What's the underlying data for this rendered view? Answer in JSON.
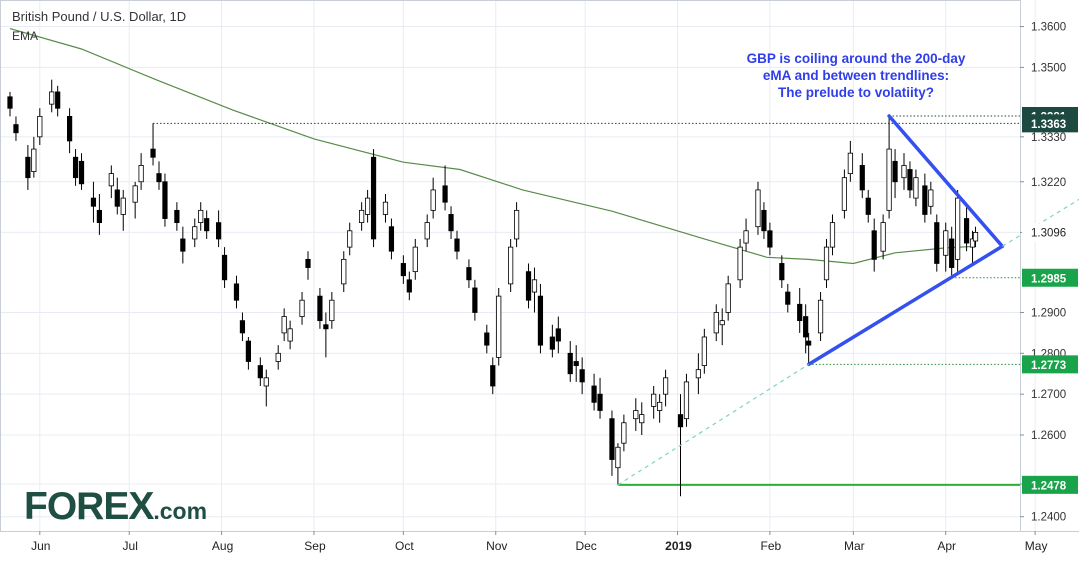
{
  "chart": {
    "title": "British Pound / U.S. Dollar, 1D",
    "indicator": "EMA",
    "annotation_lines": [
      "GBP is coiling around the 200-day",
      "eMA and between trendlines:",
      "The prelude to volatiity?"
    ]
  },
  "logo": {
    "text": "FOREX",
    "suffix": ".com"
  },
  "colors": {
    "up_candle": "#ffffff",
    "down_candle": "#000000",
    "ema": "#5a8a4a",
    "trendline": "#3450ee",
    "support_green": "#2bb03b",
    "dotted_level": "#2e8b3d",
    "dashed_extension": "#7fd4c0",
    "tag_dark": "#1d4a40",
    "tag_green": "#19a34a",
    "annotation": "#2f3ee8"
  },
  "chart_data": {
    "type": "candlestick",
    "title": "British Pound / U.S. Dollar, 1D",
    "xlabel": "",
    "ylabel": "",
    "ylim": [
      1.2365,
      1.3665
    ],
    "y_ticks": [
      "1.3600",
      "1.3500",
      "1.3330",
      "1.3220",
      "1.3096",
      "1.2900",
      "1.2800",
      "1.2700",
      "1.2600",
      "1.2480",
      "1.2400"
    ],
    "x_ticks": [
      "Jun",
      "Jul",
      "Aug",
      "Sep",
      "Oct",
      "Nov",
      "Dec",
      "2019",
      "Feb",
      "Mar",
      "Apr",
      "May"
    ],
    "price_tags": [
      {
        "label": "1.3381",
        "value": 1.3381,
        "style": "dark"
      },
      {
        "label": "1.3363",
        "value": 1.3363,
        "style": "dark"
      },
      {
        "label": "1.3096",
        "value": 1.3096,
        "style": "plain"
      },
      {
        "label": "1.2985",
        "value": 1.2985,
        "style": "green"
      },
      {
        "label": "1.2773",
        "value": 1.2773,
        "style": "green"
      },
      {
        "label": "1.2478",
        "value": 1.2478,
        "style": "green"
      }
    ],
    "horizontal_levels": [
      {
        "value": 1.3363,
        "from": "2018-07-09",
        "style": "dotted"
      },
      {
        "value": 1.3381,
        "from": "2019-03-13",
        "style": "dotted"
      },
      {
        "value": 1.2985,
        "from": "2019-04-03",
        "style": "dotted"
      },
      {
        "value": 1.2773,
        "from": "2019-02-14",
        "style": "dotted"
      },
      {
        "value": 1.2478,
        "from": "2018-12-12",
        "style": "solid"
      }
    ],
    "trendlines": [
      {
        "from": [
          "2019-03-13",
          1.3381
        ],
        "to": [
          "2019-04-20",
          1.3062
        ],
        "style": "solid"
      },
      {
        "from": [
          "2019-02-14",
          1.2773
        ],
        "to": [
          "2019-04-20",
          1.3062
        ],
        "style": "solid"
      },
      {
        "from": [
          "2018-12-12",
          1.2478
        ],
        "to": [
          "2019-02-14",
          1.2773
        ],
        "style": "dashed"
      },
      {
        "from": [
          "2019-04-20",
          1.3062
        ],
        "to": [
          "2019-05-25",
          1.3218
        ],
        "style": "dashed"
      }
    ],
    "ema": {
      "name": "EMA",
      "period": 200,
      "points": [
        [
          "2018-05-22",
          1.3595
        ],
        [
          "2018-06-15",
          1.3545
        ],
        [
          "2018-07-10",
          1.347
        ],
        [
          "2018-08-05",
          1.3395
        ],
        [
          "2018-09-01",
          1.3325
        ],
        [
          "2018-10-01",
          1.3268
        ],
        [
          "2018-10-20",
          1.325
        ],
        [
          "2018-11-10",
          1.32
        ],
        [
          "2018-12-10",
          1.3148
        ],
        [
          "2019-01-10",
          1.308
        ],
        [
          "2019-01-31",
          1.3035
        ],
        [
          "2019-02-14",
          1.303
        ],
        [
          "2019-03-01",
          1.302
        ],
        [
          "2019-03-15",
          1.3046
        ],
        [
          "2019-04-01",
          1.3058
        ],
        [
          "2019-04-11",
          1.3062
        ]
      ]
    },
    "candles": [
      [
        "2018-05-22",
        1.3428,
        1.344,
        1.338,
        1.34
      ],
      [
        "2018-05-24",
        1.336,
        1.338,
        1.332,
        1.334
      ],
      [
        "2018-05-28",
        1.328,
        1.331,
        1.32,
        1.323
      ],
      [
        "2018-05-30",
        1.3245,
        1.333,
        1.323,
        1.33
      ],
      [
        "2018-06-01",
        1.333,
        1.34,
        1.331,
        1.338
      ],
      [
        "2018-06-05",
        1.341,
        1.347,
        1.339,
        1.344
      ],
      [
        "2018-06-07",
        1.344,
        1.3455,
        1.338,
        1.34
      ],
      [
        "2018-06-11",
        1.338,
        1.34,
        1.329,
        1.332
      ],
      [
        "2018-06-13",
        1.328,
        1.33,
        1.321,
        1.323
      ],
      [
        "2018-06-15",
        1.327,
        1.329,
        1.32,
        1.3215
      ],
      [
        "2018-06-19",
        1.318,
        1.322,
        1.312,
        1.316
      ],
      [
        "2018-06-21",
        1.315,
        1.319,
        1.309,
        1.312
      ],
      [
        "2018-06-25",
        1.321,
        1.326,
        1.318,
        1.324
      ],
      [
        "2018-06-27",
        1.32,
        1.323,
        1.314,
        1.316
      ],
      [
        "2018-06-29",
        1.314,
        1.32,
        1.31,
        1.318
      ],
      [
        "2018-07-03",
        1.317,
        1.322,
        1.313,
        1.321
      ],
      [
        "2018-07-05",
        1.322,
        1.329,
        1.32,
        1.326
      ],
      [
        "2018-07-09",
        1.33,
        1.3363,
        1.326,
        1.328
      ],
      [
        "2018-07-11",
        1.324,
        1.327,
        1.32,
        1.322
      ],
      [
        "2018-07-13",
        1.322,
        1.324,
        1.311,
        1.313
      ],
      [
        "2018-07-17",
        1.315,
        1.317,
        1.31,
        1.312
      ],
      [
        "2018-07-19",
        1.308,
        1.311,
        1.302,
        1.305
      ],
      [
        "2018-07-23",
        1.308,
        1.313,
        1.306,
        1.311
      ],
      [
        "2018-07-25",
        1.312,
        1.317,
        1.31,
        1.315
      ],
      [
        "2018-07-27",
        1.313,
        1.315,
        1.308,
        1.31
      ],
      [
        "2018-07-31",
        1.312,
        1.315,
        1.306,
        1.308
      ],
      [
        "2018-08-02",
        1.304,
        1.306,
        1.296,
        1.298
      ],
      [
        "2018-08-06",
        1.297,
        1.299,
        1.291,
        1.293
      ],
      [
        "2018-08-08",
        1.288,
        1.29,
        1.283,
        1.285
      ],
      [
        "2018-08-10",
        1.283,
        1.284,
        1.276,
        1.278
      ],
      [
        "2018-08-14",
        1.277,
        1.279,
        1.272,
        1.274
      ],
      [
        "2018-08-16",
        1.272,
        1.276,
        1.267,
        1.274
      ],
      [
        "2018-08-20",
        1.278,
        1.282,
        1.276,
        1.28
      ],
      [
        "2018-08-22",
        1.285,
        1.291,
        1.283,
        1.289
      ],
      [
        "2018-08-24",
        1.283,
        1.288,
        1.281,
        1.286
      ],
      [
        "2018-08-28",
        1.289,
        1.295,
        1.287,
        1.293
      ],
      [
        "2018-08-30",
        1.303,
        1.305,
        1.298,
        1.301
      ],
      [
        "2018-09-03",
        1.294,
        1.296,
        1.286,
        1.288
      ],
      [
        "2018-09-05",
        1.287,
        1.29,
        1.279,
        1.286
      ],
      [
        "2018-09-07",
        1.288,
        1.295,
        1.286,
        1.293
      ],
      [
        "2018-09-11",
        1.297,
        1.305,
        1.295,
        1.303
      ],
      [
        "2018-09-13",
        1.306,
        1.312,
        1.304,
        1.31
      ],
      [
        "2018-09-17",
        1.312,
        1.317,
        1.31,
        1.315
      ],
      [
        "2018-09-19",
        1.314,
        1.32,
        1.312,
        1.318
      ],
      [
        "2018-09-21",
        1.328,
        1.33,
        1.306,
        1.308
      ],
      [
        "2018-09-25",
        1.314,
        1.319,
        1.312,
        1.317
      ],
      [
        "2018-09-27",
        1.311,
        1.313,
        1.303,
        1.305
      ],
      [
        "2018-10-01",
        1.302,
        1.304,
        1.297,
        1.299
      ],
      [
        "2018-10-03",
        1.298,
        1.3,
        1.293,
        1.295
      ],
      [
        "2018-10-05",
        1.3,
        1.308,
        1.298,
        1.306
      ],
      [
        "2018-10-09",
        1.308,
        1.314,
        1.306,
        1.312
      ],
      [
        "2018-10-11",
        1.315,
        1.323,
        1.313,
        1.32
      ],
      [
        "2018-10-15",
        1.321,
        1.326,
        1.315,
        1.317
      ],
      [
        "2018-10-17",
        1.314,
        1.316,
        1.308,
        1.31
      ],
      [
        "2018-10-19",
        1.308,
        1.31,
        1.303,
        1.305
      ],
      [
        "2018-10-23",
        1.301,
        1.303,
        1.296,
        1.298
      ],
      [
        "2018-10-25",
        1.296,
        1.298,
        1.288,
        1.29
      ],
      [
        "2018-10-29",
        1.285,
        1.287,
        1.28,
        1.282
      ],
      [
        "2018-10-31",
        1.277,
        1.279,
        1.27,
        1.272
      ],
      [
        "2018-11-02",
        1.279,
        1.296,
        1.277,
        1.294
      ],
      [
        "2018-11-06",
        1.297,
        1.308,
        1.295,
        1.306
      ],
      [
        "2018-11-08",
        1.308,
        1.317,
        1.306,
        1.315
      ],
      [
        "2018-11-12",
        1.3,
        1.302,
        1.291,
        1.293
      ],
      [
        "2018-11-14",
        1.295,
        1.301,
        1.29,
        1.298
      ],
      [
        "2018-11-16",
        1.294,
        1.297,
        1.28,
        1.282
      ],
      [
        "2018-11-20",
        1.284,
        1.287,
        1.279,
        1.281
      ],
      [
        "2018-11-22",
        1.286,
        1.289,
        1.28,
        1.283
      ],
      [
        "2018-11-26",
        1.28,
        1.283,
        1.273,
        1.275
      ],
      [
        "2018-11-28",
        1.278,
        1.282,
        1.273,
        1.277
      ],
      [
        "2018-11-30",
        1.276,
        1.279,
        1.27,
        1.273
      ],
      [
        "2018-12-04",
        1.272,
        1.275,
        1.266,
        1.268
      ],
      [
        "2018-12-06",
        1.27,
        1.274,
        1.264,
        1.266
      ],
      [
        "2018-12-10",
        1.264,
        1.266,
        1.25,
        1.254
      ],
      [
        "2018-12-12",
        1.252,
        1.258,
        1.2478,
        1.257
      ],
      [
        "2018-12-14",
        1.258,
        1.265,
        1.256,
        1.263
      ],
      [
        "2018-12-18",
        1.264,
        1.269,
        1.261,
        1.266
      ],
      [
        "2018-12-20",
        1.263,
        1.268,
        1.26,
        1.265
      ],
      [
        "2018-12-24",
        1.267,
        1.272,
        1.264,
        1.27
      ],
      [
        "2018-12-26",
        1.266,
        1.27,
        1.263,
        1.268
      ],
      [
        "2018-12-28",
        1.27,
        1.276,
        1.267,
        1.274
      ],
      [
        "2019-01-02",
        1.265,
        1.27,
        1.245,
        1.262
      ],
      [
        "2019-01-04",
        1.264,
        1.275,
        1.262,
        1.273
      ],
      [
        "2019-01-08",
        1.274,
        1.28,
        1.27,
        1.276
      ],
      [
        "2019-01-10",
        1.277,
        1.286,
        1.275,
        1.284
      ],
      [
        "2019-01-14",
        1.285,
        1.292,
        1.283,
        1.29
      ],
      [
        "2019-01-16",
        1.287,
        1.291,
        1.282,
        1.288
      ],
      [
        "2019-01-18",
        1.29,
        1.299,
        1.288,
        1.297
      ],
      [
        "2019-01-22",
        1.298,
        1.308,
        1.296,
        1.306
      ],
      [
        "2019-01-24",
        1.307,
        1.313,
        1.305,
        1.31
      ],
      [
        "2019-01-28",
        1.311,
        1.322,
        1.309,
        1.32
      ],
      [
        "2019-01-30",
        1.315,
        1.317,
        1.308,
        1.31
      ],
      [
        "2019-02-01",
        1.31,
        1.312,
        1.304,
        1.306
      ],
      [
        "2019-02-05",
        1.302,
        1.304,
        1.296,
        1.298
      ],
      [
        "2019-02-07",
        1.295,
        1.297,
        1.29,
        1.292
      ],
      [
        "2019-02-11",
        1.292,
        1.296,
        1.285,
        1.288
      ],
      [
        "2019-02-13",
        1.289,
        1.292,
        1.28,
        1.284
      ],
      [
        "2019-02-14",
        1.283,
        1.285,
        1.2773,
        1.282
      ],
      [
        "2019-02-18",
        1.285,
        1.295,
        1.283,
        1.293
      ],
      [
        "2019-02-20",
        1.298,
        1.308,
        1.296,
        1.306
      ],
      [
        "2019-02-22",
        1.306,
        1.314,
        1.304,
        1.312
      ],
      [
        "2019-02-26",
        1.315,
        1.325,
        1.313,
        1.323
      ],
      [
        "2019-02-28",
        1.324,
        1.332,
        1.322,
        1.329
      ],
      [
        "2019-03-04",
        1.326,
        1.329,
        1.318,
        1.32
      ],
      [
        "2019-03-06",
        1.318,
        1.32,
        1.312,
        1.314
      ],
      [
        "2019-03-08",
        1.31,
        1.313,
        1.3,
        1.303
      ],
      [
        "2019-03-11",
        1.305,
        1.314,
        1.303,
        1.312
      ],
      [
        "2019-03-13",
        1.315,
        1.3381,
        1.313,
        1.33
      ],
      [
        "2019-03-15",
        1.327,
        1.33,
        1.318,
        1.322
      ],
      [
        "2019-03-18",
        1.323,
        1.329,
        1.32,
        1.326
      ],
      [
        "2019-03-20",
        1.325,
        1.327,
        1.318,
        1.32
      ],
      [
        "2019-03-22",
        1.318,
        1.325,
        1.316,
        1.323
      ],
      [
        "2019-03-25",
        1.321,
        1.324,
        1.312,
        1.314
      ],
      [
        "2019-03-27",
        1.316,
        1.322,
        1.314,
        1.32
      ],
      [
        "2019-03-29",
        1.312,
        1.314,
        1.3,
        1.302
      ],
      [
        "2019-04-01",
        1.304,
        1.312,
        1.3,
        1.31
      ],
      [
        "2019-04-03",
        1.308,
        1.311,
        1.2985,
        1.301
      ],
      [
        "2019-04-05",
        1.303,
        1.32,
        1.3,
        1.318
      ],
      [
        "2019-04-08",
        1.313,
        1.316,
        1.305,
        1.307
      ],
      [
        "2019-04-10",
        1.306,
        1.31,
        1.302,
        1.308
      ],
      [
        "2019-04-11",
        1.3075,
        1.311,
        1.306,
        1.3096
      ]
    ]
  }
}
